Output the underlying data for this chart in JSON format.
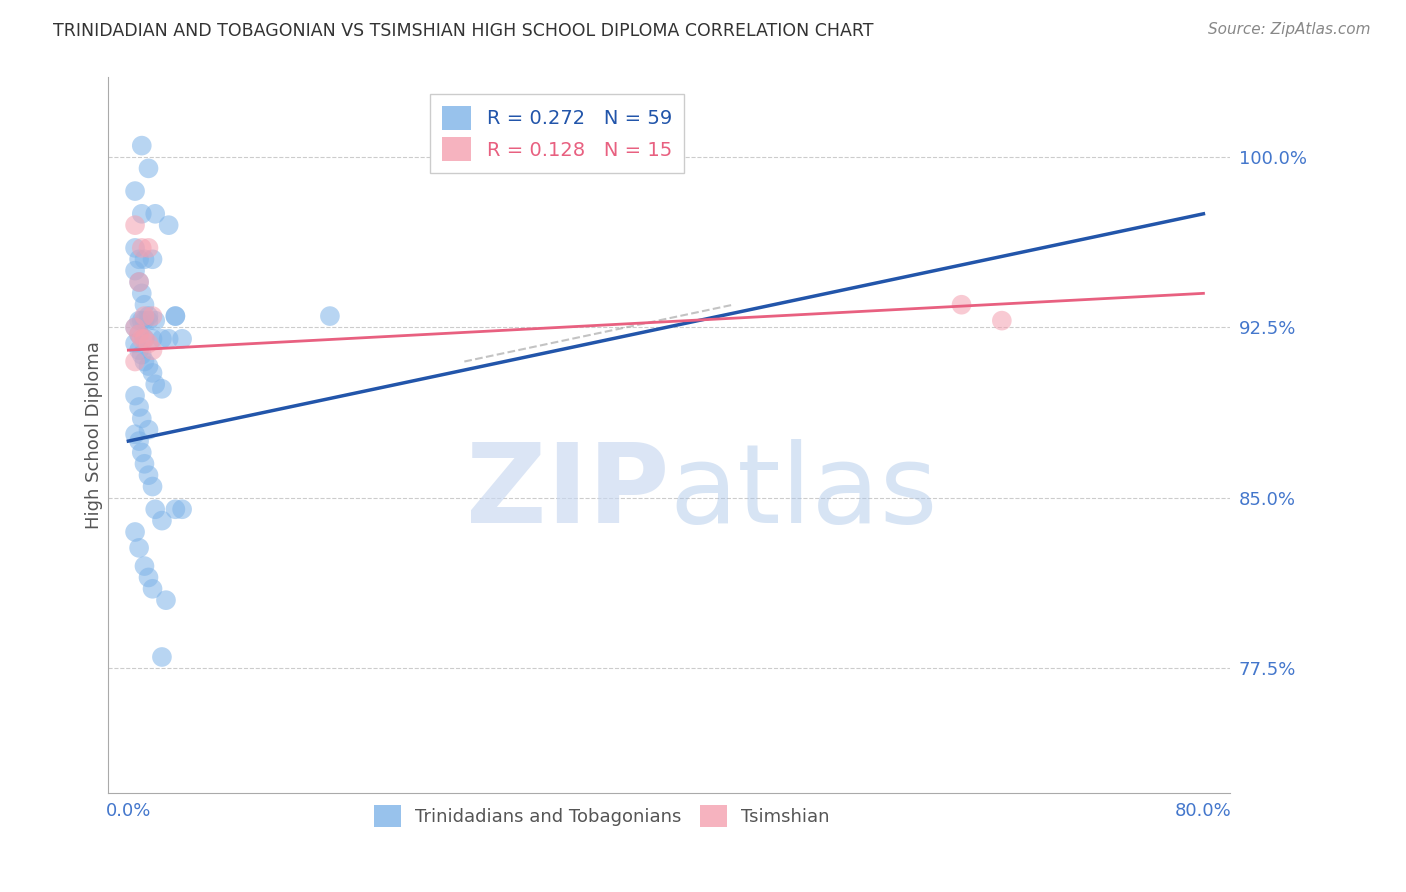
{
  "title": "TRINIDADIAN AND TOBAGONIAN VS TSIMSHIAN HIGH SCHOOL DIPLOMA CORRELATION CHART",
  "source": "Source: ZipAtlas.com",
  "ylabel": "High School Diploma",
  "ytick_labels": [
    "100.0%",
    "92.5%",
    "85.0%",
    "77.5%"
  ],
  "ytick_values": [
    100.0,
    92.5,
    85.0,
    77.5
  ],
  "xtick_labels": [
    "0.0%",
    "80.0%"
  ],
  "xtick_values": [
    0.0,
    80.0
  ],
  "xlim": [
    -1.5,
    82.0
  ],
  "ylim": [
    72.0,
    103.5
  ],
  "blue_color": "#7EB3E8",
  "pink_color": "#F4A0B0",
  "blue_line_color": "#2255AA",
  "pink_line_color": "#E86080",
  "legend_r_blue": "R = 0.272",
  "legend_n_blue": "N = 59",
  "legend_r_pink": "R = 0.128",
  "legend_n_pink": "N = 15",
  "blue_scatter_x": [
    1.0,
    1.5,
    0.5,
    1.0,
    2.0,
    3.0,
    0.5,
    0.8,
    1.2,
    1.8,
    0.5,
    0.8,
    1.0,
    1.2,
    1.5,
    0.8,
    1.0,
    1.2,
    1.5,
    2.0,
    0.5,
    0.8,
    1.2,
    1.8,
    2.5,
    3.0,
    3.5,
    4.0,
    0.5,
    0.8,
    1.0,
    1.2,
    1.5,
    1.8,
    2.0,
    2.5,
    0.5,
    0.8,
    1.0,
    1.5,
    0.5,
    0.8,
    1.0,
    1.2,
    1.5,
    1.8,
    2.0,
    2.5,
    0.5,
    0.8,
    1.2,
    1.5,
    1.8,
    2.8,
    3.5,
    4.0,
    2.5,
    15.0,
    3.5
  ],
  "blue_scatter_y": [
    100.5,
    99.5,
    98.5,
    97.5,
    97.5,
    97.0,
    96.0,
    95.5,
    95.5,
    95.5,
    95.0,
    94.5,
    94.0,
    93.5,
    93.0,
    92.8,
    92.8,
    92.8,
    92.8,
    92.8,
    92.5,
    92.2,
    92.0,
    92.0,
    92.0,
    92.0,
    93.0,
    92.0,
    91.8,
    91.5,
    91.3,
    91.0,
    90.8,
    90.5,
    90.0,
    89.8,
    89.5,
    89.0,
    88.5,
    88.0,
    87.8,
    87.5,
    87.0,
    86.5,
    86.0,
    85.5,
    84.5,
    84.0,
    83.5,
    82.8,
    82.0,
    81.5,
    81.0,
    80.5,
    84.5,
    84.5,
    78.0,
    93.0,
    93.0
  ],
  "pink_scatter_x": [
    0.5,
    1.0,
    1.5,
    0.8,
    1.2,
    1.8,
    0.5,
    0.8,
    1.0,
    1.2,
    1.5,
    1.8,
    0.5,
    62.0,
    65.0
  ],
  "pink_scatter_y": [
    97.0,
    96.0,
    96.0,
    94.5,
    93.0,
    93.0,
    92.5,
    92.2,
    92.0,
    92.0,
    91.8,
    91.5,
    91.0,
    93.5,
    92.8
  ],
  "blue_trend_x0": 0.0,
  "blue_trend_x1": 80.0,
  "blue_trend_y0": 87.5,
  "blue_trend_y1": 97.5,
  "pink_trend_x0": 0.0,
  "pink_trend_x1": 80.0,
  "pink_trend_y0": 91.5,
  "pink_trend_y1": 94.0,
  "dash_x0": 25.0,
  "dash_x1": 45.0,
  "dash_y0": 91.0,
  "dash_y1": 93.5,
  "grid_color": "#CCCCCC",
  "title_color": "#333333",
  "tick_color": "#4477CC",
  "source_color": "#888888",
  "legend_label_blue": "Trinidadians and Tobagonians",
  "legend_label_pink": "Tsimshian"
}
